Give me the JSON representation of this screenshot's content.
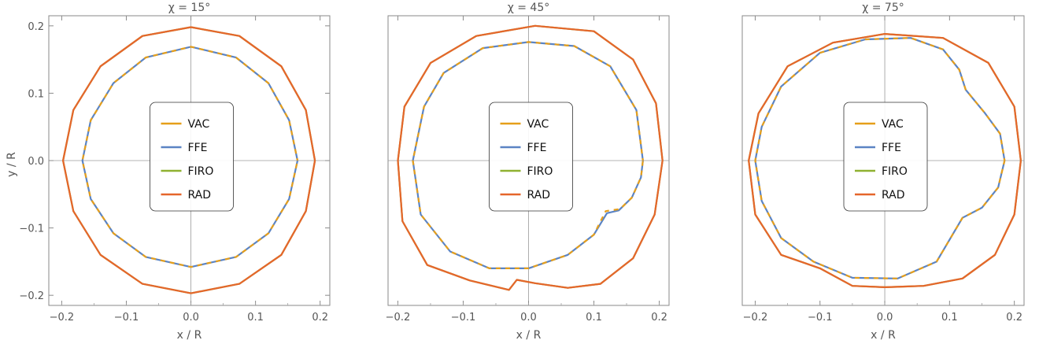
{
  "figure": {
    "xlabel": "x / R",
    "ylabel": "y / R"
  },
  "legend_series": [
    {
      "name": "VAC",
      "color": "#E69F1A"
    },
    {
      "name": "FFE",
      "color": "#5B84C4"
    },
    {
      "name": "FIRO",
      "color": "#8FB131"
    },
    {
      "name": "RAD",
      "color": "#E5662B"
    }
  ],
  "chart_data": [
    {
      "type": "line",
      "title": "χ = 15°",
      "xlabel": "x / R",
      "ylabel": "y / R",
      "xlim": [
        -0.22,
        0.215
      ],
      "ylim": [
        -0.215,
        0.215
      ],
      "xticks": [
        -0.2,
        -0.1,
        0.0,
        0.1,
        0.2
      ],
      "xtick_labels": [
        "−0.2",
        "−0.1",
        "0.0",
        "0.1",
        "0.2"
      ],
      "yticks": [
        -0.2,
        -0.1,
        0.0,
        0.1,
        0.2
      ],
      "ytick_labels": [
        "−0.2",
        "−0.1",
        "0.0",
        "0.1",
        "0.2"
      ],
      "legend_position": "center",
      "grid": false,
      "series": [
        {
          "name": "VAC",
          "style": "dashed",
          "points": [
            [
              0.165,
              0.0
            ],
            [
              0.152,
              0.06
            ],
            [
              0.12,
              0.115
            ],
            [
              0.07,
              0.153
            ],
            [
              0.0,
              0.169
            ],
            [
              -0.07,
              0.153
            ],
            [
              -0.12,
              0.115
            ],
            [
              -0.155,
              0.06
            ],
            [
              -0.168,
              0.0
            ],
            [
              -0.155,
              -0.057
            ],
            [
              -0.12,
              -0.108
            ],
            [
              -0.07,
              -0.143
            ],
            [
              0.0,
              -0.158
            ],
            [
              0.07,
              -0.143
            ],
            [
              0.12,
              -0.108
            ],
            [
              0.152,
              -0.057
            ],
            [
              0.165,
              0.0
            ]
          ]
        },
        {
          "name": "FFE",
          "style": "dashed",
          "points": [
            [
              0.165,
              0.0
            ],
            [
              0.152,
              0.06
            ],
            [
              0.12,
              0.115
            ],
            [
              0.07,
              0.153
            ],
            [
              0.0,
              0.169
            ],
            [
              -0.07,
              0.153
            ],
            [
              -0.12,
              0.115
            ],
            [
              -0.155,
              0.06
            ],
            [
              -0.168,
              0.0
            ],
            [
              -0.155,
              -0.057
            ],
            [
              -0.12,
              -0.108
            ],
            [
              -0.07,
              -0.143
            ],
            [
              0.0,
              -0.158
            ],
            [
              0.07,
              -0.143
            ],
            [
              0.12,
              -0.108
            ],
            [
              0.152,
              -0.057
            ],
            [
              0.165,
              0.0
            ]
          ]
        },
        {
          "name": "FIRO",
          "style": "solid",
          "points": [
            [
              0.192,
              0.0
            ],
            [
              0.178,
              0.075
            ],
            [
              0.14,
              0.14
            ],
            [
              0.075,
              0.185
            ],
            [
              0.0,
              0.198
            ],
            [
              -0.075,
              0.185
            ],
            [
              -0.14,
              0.14
            ],
            [
              -0.182,
              0.075
            ],
            [
              -0.198,
              0.0
            ],
            [
              -0.182,
              -0.075
            ],
            [
              -0.14,
              -0.14
            ],
            [
              -0.075,
              -0.183
            ],
            [
              0.0,
              -0.197
            ],
            [
              0.075,
              -0.183
            ],
            [
              0.14,
              -0.14
            ],
            [
              0.178,
              -0.075
            ],
            [
              0.192,
              0.0
            ]
          ]
        },
        {
          "name": "RAD",
          "style": "solid",
          "points": [
            [
              0.192,
              0.0
            ],
            [
              0.178,
              0.075
            ],
            [
              0.14,
              0.14
            ],
            [
              0.075,
              0.185
            ],
            [
              0.0,
              0.198
            ],
            [
              -0.075,
              0.185
            ],
            [
              -0.14,
              0.14
            ],
            [
              -0.182,
              0.075
            ],
            [
              -0.198,
              0.0
            ],
            [
              -0.182,
              -0.075
            ],
            [
              -0.14,
              -0.14
            ],
            [
              -0.075,
              -0.183
            ],
            [
              0.0,
              -0.197
            ],
            [
              0.075,
              -0.183
            ],
            [
              0.14,
              -0.14
            ],
            [
              0.178,
              -0.075
            ],
            [
              0.192,
              0.0
            ]
          ]
        }
      ]
    },
    {
      "type": "line",
      "title": "χ = 45°",
      "xlabel": "x / R",
      "ylabel": "",
      "xlim": [
        -0.215,
        0.215
      ],
      "ylim": [
        -0.215,
        0.215
      ],
      "xticks": [
        -0.2,
        -0.1,
        0.0,
        0.1,
        0.2
      ],
      "xtick_labels": [
        "−0.2",
        "−0.1",
        "0.0",
        "0.1",
        "0.2"
      ],
      "yticks": [],
      "ytick_labels": [],
      "legend_position": "center",
      "grid": false,
      "series": [
        {
          "name": "VAC",
          "style": "dashed",
          "points": [
            [
              0.175,
              0.0
            ],
            [
              0.165,
              0.075
            ],
            [
              0.125,
              0.14
            ],
            [
              0.07,
              0.17
            ],
            [
              0.0,
              0.176
            ],
            [
              -0.07,
              0.167
            ],
            [
              -0.13,
              0.13
            ],
            [
              -0.16,
              0.08
            ],
            [
              -0.177,
              0.0
            ],
            [
              -0.165,
              -0.08
            ],
            [
              -0.12,
              -0.135
            ],
            [
              -0.06,
              -0.16
            ],
            [
              0.0,
              -0.16
            ],
            [
              0.06,
              -0.14
            ],
            [
              0.1,
              -0.11
            ],
            [
              0.118,
              -0.075
            ],
            [
              0.14,
              -0.072
            ],
            [
              0.158,
              -0.055
            ],
            [
              0.172,
              -0.025
            ],
            [
              0.175,
              0.0
            ]
          ]
        },
        {
          "name": "FFE",
          "style": "dashed",
          "points": [
            [
              0.175,
              0.0
            ],
            [
              0.165,
              0.075
            ],
            [
              0.125,
              0.14
            ],
            [
              0.07,
              0.17
            ],
            [
              0.0,
              0.176
            ],
            [
              -0.07,
              0.167
            ],
            [
              -0.13,
              0.13
            ],
            [
              -0.16,
              0.08
            ],
            [
              -0.177,
              0.0
            ],
            [
              -0.165,
              -0.08
            ],
            [
              -0.12,
              -0.135
            ],
            [
              -0.06,
              -0.16
            ],
            [
              0.0,
              -0.16
            ],
            [
              0.06,
              -0.14
            ],
            [
              0.1,
              -0.11
            ],
            [
              0.12,
              -0.078
            ],
            [
              0.138,
              -0.074
            ],
            [
              0.158,
              -0.055
            ],
            [
              0.172,
              -0.025
            ],
            [
              0.175,
              0.0
            ]
          ]
        },
        {
          "name": "FIRO",
          "style": "solid",
          "points": [
            [
              0.205,
              0.0
            ],
            [
              0.195,
              0.085
            ],
            [
              0.16,
              0.15
            ],
            [
              0.1,
              0.192
            ],
            [
              0.01,
              0.2
            ],
            [
              -0.08,
              0.185
            ],
            [
              -0.15,
              0.145
            ],
            [
              -0.19,
              0.08
            ],
            [
              -0.2,
              0.0
            ],
            [
              -0.193,
              -0.09
            ],
            [
              -0.155,
              -0.155
            ],
            [
              -0.09,
              -0.178
            ],
            [
              -0.03,
              -0.192
            ],
            [
              -0.018,
              -0.177
            ],
            [
              0.01,
              -0.182
            ],
            [
              0.06,
              -0.189
            ],
            [
              0.11,
              -0.183
            ],
            [
              0.16,
              -0.145
            ],
            [
              0.193,
              -0.08
            ],
            [
              0.205,
              0.0
            ]
          ]
        },
        {
          "name": "RAD",
          "style": "solid",
          "points": [
            [
              0.205,
              0.0
            ],
            [
              0.195,
              0.085
            ],
            [
              0.16,
              0.15
            ],
            [
              0.1,
              0.192
            ],
            [
              0.01,
              0.2
            ],
            [
              -0.08,
              0.185
            ],
            [
              -0.15,
              0.145
            ],
            [
              -0.19,
              0.08
            ],
            [
              -0.2,
              0.0
            ],
            [
              -0.193,
              -0.09
            ],
            [
              -0.155,
              -0.155
            ],
            [
              -0.09,
              -0.178
            ],
            [
              -0.03,
              -0.192
            ],
            [
              -0.018,
              -0.177
            ],
            [
              0.01,
              -0.182
            ],
            [
              0.06,
              -0.189
            ],
            [
              0.11,
              -0.183
            ],
            [
              0.16,
              -0.145
            ],
            [
              0.193,
              -0.08
            ],
            [
              0.205,
              0.0
            ]
          ]
        }
      ]
    },
    {
      "type": "line",
      "title": "χ = 75°",
      "xlabel": "x / R",
      "ylabel": "",
      "xlim": [
        -0.22,
        0.215
      ],
      "ylim": [
        -0.215,
        0.215
      ],
      "xticks": [
        -0.2,
        -0.1,
        0.0,
        0.1,
        0.2
      ],
      "xtick_labels": [
        "−0.2",
        "−0.1",
        "0.0",
        "0.1",
        "0.2"
      ],
      "yticks": [],
      "ytick_labels": [],
      "legend_position": "center",
      "grid": false,
      "series": [
        {
          "name": "VAC",
          "style": "dashed",
          "points": [
            [
              0.185,
              0.0
            ],
            [
              0.178,
              0.04
            ],
            [
              0.155,
              0.07
            ],
            [
              0.125,
              0.105
            ],
            [
              0.115,
              0.135
            ],
            [
              0.09,
              0.165
            ],
            [
              0.04,
              0.182
            ],
            [
              -0.03,
              0.18
            ],
            [
              -0.1,
              0.16
            ],
            [
              -0.16,
              0.11
            ],
            [
              -0.19,
              0.05
            ],
            [
              -0.2,
              0.0
            ],
            [
              -0.19,
              -0.06
            ],
            [
              -0.16,
              -0.115
            ],
            [
              -0.11,
              -0.15
            ],
            [
              -0.05,
              -0.174
            ],
            [
              0.02,
              -0.175
            ],
            [
              0.08,
              -0.15
            ],
            [
              0.12,
              -0.085
            ],
            [
              0.15,
              -0.07
            ],
            [
              0.175,
              -0.04
            ],
            [
              0.185,
              0.0
            ]
          ]
        },
        {
          "name": "FFE",
          "style": "dashed",
          "points": [
            [
              0.185,
              0.0
            ],
            [
              0.178,
              0.04
            ],
            [
              0.155,
              0.07
            ],
            [
              0.125,
              0.105
            ],
            [
              0.115,
              0.135
            ],
            [
              0.09,
              0.165
            ],
            [
              0.04,
              0.182
            ],
            [
              -0.03,
              0.18
            ],
            [
              -0.1,
              0.16
            ],
            [
              -0.16,
              0.11
            ],
            [
              -0.19,
              0.05
            ],
            [
              -0.2,
              0.0
            ],
            [
              -0.19,
              -0.06
            ],
            [
              -0.16,
              -0.115
            ],
            [
              -0.11,
              -0.15
            ],
            [
              -0.05,
              -0.174
            ],
            [
              0.02,
              -0.175
            ],
            [
              0.08,
              -0.15
            ],
            [
              0.12,
              -0.085
            ],
            [
              0.15,
              -0.07
            ],
            [
              0.175,
              -0.04
            ],
            [
              0.185,
              0.0
            ]
          ]
        },
        {
          "name": "FIRO",
          "style": "solid",
          "points": [
            [
              0.21,
              0.0
            ],
            [
              0.2,
              0.08
            ],
            [
              0.16,
              0.145
            ],
            [
              0.09,
              0.182
            ],
            [
              0.0,
              0.188
            ],
            [
              -0.08,
              0.175
            ],
            [
              -0.15,
              0.14
            ],
            [
              -0.195,
              0.07
            ],
            [
              -0.21,
              0.0
            ],
            [
              -0.2,
              -0.08
            ],
            [
              -0.16,
              -0.14
            ],
            [
              -0.1,
              -0.16
            ],
            [
              -0.05,
              -0.186
            ],
            [
              0.0,
              -0.188
            ],
            [
              0.06,
              -0.186
            ],
            [
              0.12,
              -0.175
            ],
            [
              0.17,
              -0.14
            ],
            [
              0.2,
              -0.08
            ],
            [
              0.21,
              0.0
            ]
          ]
        },
        {
          "name": "RAD",
          "style": "solid",
          "points": [
            [
              0.21,
              0.0
            ],
            [
              0.2,
              0.08
            ],
            [
              0.16,
              0.145
            ],
            [
              0.09,
              0.182
            ],
            [
              0.0,
              0.188
            ],
            [
              -0.08,
              0.175
            ],
            [
              -0.15,
              0.14
            ],
            [
              -0.195,
              0.07
            ],
            [
              -0.21,
              0.0
            ],
            [
              -0.2,
              -0.08
            ],
            [
              -0.16,
              -0.14
            ],
            [
              -0.1,
              -0.16
            ],
            [
              -0.05,
              -0.186
            ],
            [
              0.0,
              -0.188
            ],
            [
              0.06,
              -0.186
            ],
            [
              0.12,
              -0.175
            ],
            [
              0.17,
              -0.14
            ],
            [
              0.2,
              -0.08
            ],
            [
              0.21,
              0.0
            ]
          ]
        }
      ]
    }
  ]
}
